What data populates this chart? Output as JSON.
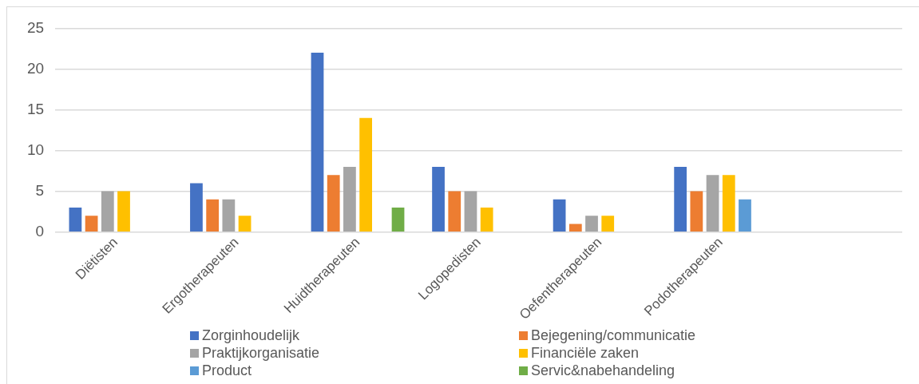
{
  "chart_data": {
    "type": "bar",
    "categories": [
      "Diëtisten",
      "Ergotherapeuten",
      "Huidtherapeuten",
      "Logopedisten",
      "Oefentherapeuten",
      "Podotherapeuten",
      null
    ],
    "series": [
      {
        "name": "Zorginhoudelijk",
        "color": "#4472c4",
        "values": [
          3,
          6,
          22,
          8,
          4,
          8,
          null
        ]
      },
      {
        "name": "Bejegening/communicatie",
        "color": "#ed7d31",
        "values": [
          2,
          4,
          7,
          5,
          1,
          5,
          null
        ]
      },
      {
        "name": "Praktijkorganisatie",
        "color": "#a5a5a5",
        "values": [
          5,
          4,
          8,
          5,
          2,
          7,
          null
        ]
      },
      {
        "name": "Financiële zaken",
        "color": "#ffc000",
        "values": [
          5,
          2,
          14,
          3,
          2,
          7,
          null
        ]
      },
      {
        "name": "Product",
        "color": "#5b9bd5",
        "values": [
          null,
          null,
          null,
          null,
          null,
          4,
          null
        ]
      },
      {
        "name": "Servic&nabehandeling",
        "color": "#70ad47",
        "values": [
          null,
          null,
          3,
          null,
          null,
          null,
          null
        ]
      }
    ],
    "ylim": [
      0,
      25
    ],
    "yticks": [
      0,
      5,
      10,
      15,
      20,
      25
    ],
    "grid": "y",
    "legend": "bottom"
  }
}
